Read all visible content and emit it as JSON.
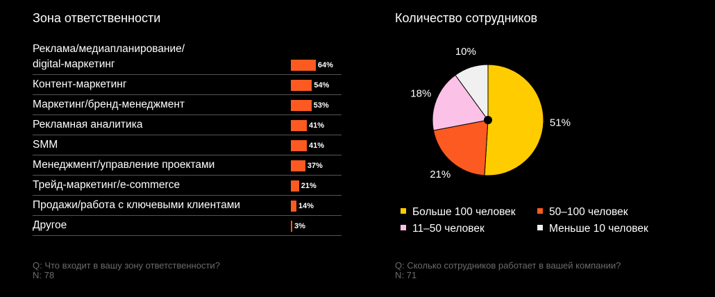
{
  "left_panel": {
    "title": "Зона ответственности",
    "question": "Q: Что входит в вашу зону ответственности?",
    "n": "N: 78"
  },
  "right_panel": {
    "title": "Количество сотрудников",
    "question": "Q: Сколько сотрудников работает в вашей компании?",
    "n": "N: 71"
  },
  "colors": {
    "background": "#000000",
    "bar": "#fc5a20",
    "divider": "#555555",
    "footnote": "#6b6b6b"
  },
  "chart_data": [
    {
      "type": "bar",
      "orientation": "horizontal",
      "categories": [
        "Реклама/медиапланирование/\ndigital-маркетинг",
        "Контент-маркетинг",
        "Маркетинг/бренд-менеджмент",
        "Рекламная аналитика",
        "SMM",
        "Менеджмент/управление проектами",
        "Трейд-маркетинг/e-commerce",
        "Продажи/работа с ключевыми клиентами",
        "Другое"
      ],
      "values": [
        64,
        54,
        53,
        41,
        41,
        37,
        21,
        14,
        3
      ],
      "value_labels": [
        "64%",
        "54%",
        "53%",
        "41%",
        "41%",
        "37%",
        "21%",
        "14%",
        "3%"
      ],
      "unit": "%"
    },
    {
      "type": "pie",
      "slices": [
        {
          "name": "Больше 100 человек",
          "value": 51,
          "label": "51%",
          "color": "#ffcc00"
        },
        {
          "name": "50–100 человек",
          "value": 21,
          "label": "21%",
          "color": "#fc5a20"
        },
        {
          "name": "11–50 человек",
          "value": 18,
          "label": "18%",
          "color": "#fcc1e6"
        },
        {
          "name": "Меньше 10 человек",
          "value": 10,
          "label": "10%",
          "color": "#f0f0f0"
        }
      ],
      "legend_position": "bottom"
    }
  ]
}
